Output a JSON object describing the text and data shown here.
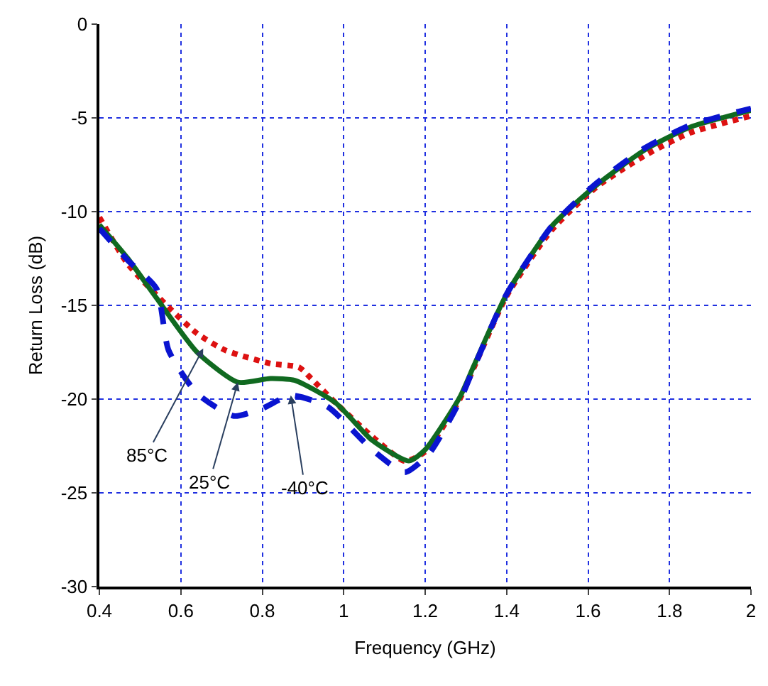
{
  "chart_data": {
    "type": "line",
    "xlabel": "Frequency (GHz)",
    "ylabel": "Return Loss (dB)",
    "xlim": [
      0.4,
      2
    ],
    "xticks": [
      0.4,
      0.6,
      0.8,
      1,
      1.2,
      1.4,
      1.6,
      1.8,
      2
    ],
    "ylim": [
      -30,
      0
    ],
    "yticks": [
      -30,
      -25,
      -20,
      -15,
      -10,
      -5,
      0
    ],
    "grid": true,
    "legend": false,
    "series": [
      {
        "color": "#dd1111",
        "line_style": "dotted",
        "x": [
          0.4,
          0.47,
          0.57,
          0.64,
          0.71,
          0.82,
          0.89,
          0.92,
          0.98,
          1.07,
          1.15,
          1.2,
          1.285,
          1.32,
          1.4,
          1.51,
          1.62,
          1.74,
          1.85,
          2
        ],
        "values": [
          -10.3,
          -12.8,
          -15.1,
          -16.5,
          -17.4,
          -18.1,
          -18.3,
          -18.9,
          -20.2,
          -22.0,
          -23.3,
          -22.8,
          -20.0,
          -18.3,
          -14.5,
          -11.0,
          -8.7,
          -7.0,
          -5.8,
          -4.9
        ]
      },
      {
        "color": "#106a20",
        "line_style": "solid",
        "x": [
          0.4,
          0.47,
          0.54,
          0.64,
          0.74,
          0.82,
          0.88,
          0.98,
          1.07,
          1.16,
          1.2,
          1.285,
          1.32,
          1.4,
          1.51,
          1.62,
          1.74,
          1.85,
          2
        ],
        "values": [
          -10.7,
          -12.5,
          -14.6,
          -17.5,
          -19.1,
          -18.9,
          -19.0,
          -20.2,
          -22.2,
          -23.3,
          -22.7,
          -19.9,
          -18.2,
          -14.4,
          -10.8,
          -8.6,
          -6.7,
          -5.5,
          -4.6
        ]
      },
      {
        "color": "#0a14d0",
        "line_style": "dashed",
        "x": [
          0.4,
          0.47,
          0.54,
          0.57,
          0.64,
          0.73,
          0.8,
          0.87,
          0.96,
          1.07,
          1.15,
          1.21,
          1.285,
          1.32,
          1.4,
          1.51,
          1.62,
          1.74,
          1.85,
          2
        ],
        "values": [
          -10.9,
          -12.6,
          -14.1,
          -17.4,
          -19.7,
          -20.9,
          -20.5,
          -19.8,
          -20.4,
          -22.7,
          -23.9,
          -22.9,
          -20.1,
          -18.3,
          -14.4,
          -10.8,
          -8.5,
          -6.6,
          -5.4,
          -4.5
        ]
      }
    ],
    "annotations": [
      {
        "text": "85°C",
        "x": 0.655,
        "y": -17.3
      },
      {
        "text": "25°C",
        "x": 0.74,
        "y": -19.1
      },
      {
        "text": "-40°C",
        "x": 0.87,
        "y": -19.8
      }
    ]
  }
}
